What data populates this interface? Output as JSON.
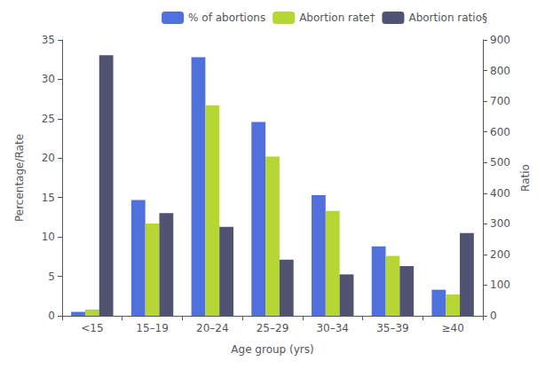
{
  "chart_data": {
    "type": "bar",
    "categories": [
      "<15",
      "15–19",
      "20–24",
      "25–29",
      "30–34",
      "35–39",
      "≥40"
    ],
    "series": [
      {
        "name": "% of abortions",
        "values": [
          0.5,
          14.7,
          32.8,
          24.6,
          15.3,
          8.8,
          3.3
        ]
      },
      {
        "name": "Abortion rate†",
        "values": [
          0.8,
          11.7,
          26.7,
          20.2,
          13.3,
          7.6,
          2.7
        ]
      },
      {
        "name": "Abortion ratio§",
        "values": [
          850,
          335,
          290,
          183,
          135,
          162,
          270
        ],
        "axis": "y2"
      }
    ],
    "xlabel": "Age group (yrs)",
    "ylabel": "Percentage/Rate",
    "y2label": "Ratio",
    "ylim": [
      0,
      35
    ],
    "yticks": [
      0,
      5,
      10,
      15,
      20,
      25,
      30,
      35
    ],
    "y2lim": [
      0,
      900
    ],
    "y2ticks": [
      0,
      100,
      200,
      300,
      400,
      500,
      600,
      700,
      800,
      900
    ],
    "legend": "upper right",
    "grid": false
  }
}
